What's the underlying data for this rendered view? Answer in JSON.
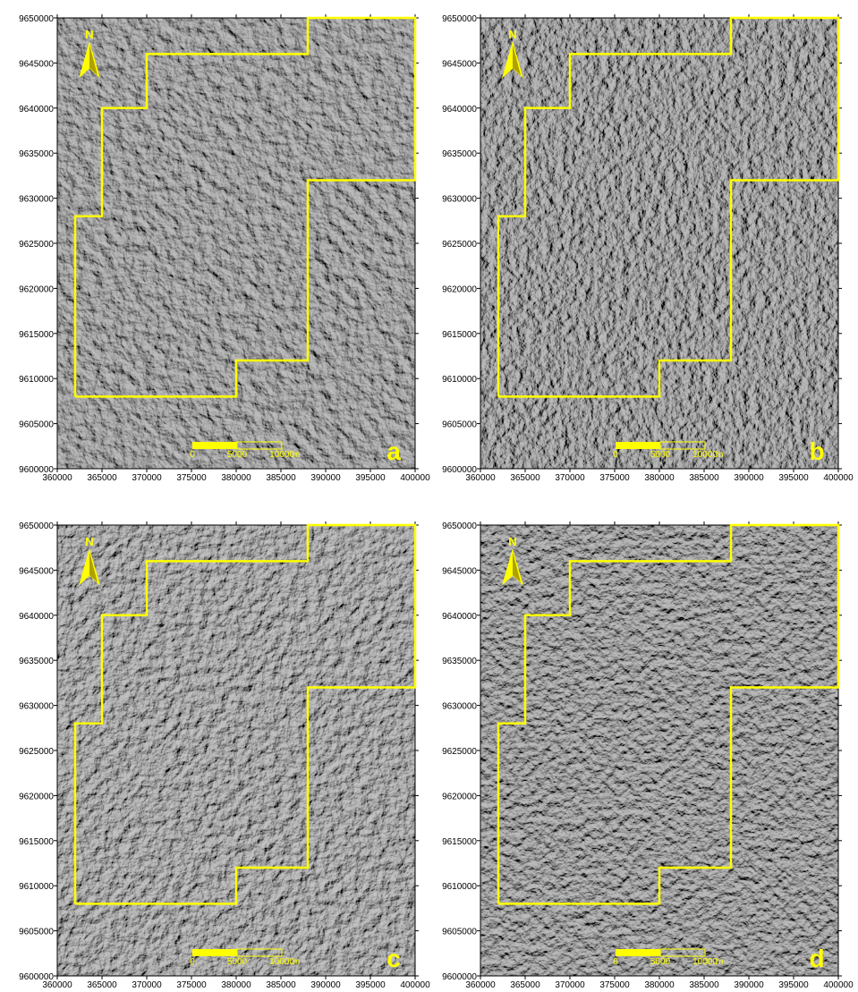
{
  "axes": {
    "xlim": [
      360000,
      400000
    ],
    "ylim": [
      9600000,
      9650000
    ],
    "xticks": [
      360000,
      365000,
      370000,
      375000,
      380000,
      385000,
      390000,
      395000,
      400000
    ],
    "yticks": [
      9600000,
      9605000,
      9610000,
      9615000,
      9620000,
      9625000,
      9630000,
      9635000,
      9640000,
      9645000,
      9650000
    ]
  },
  "boundary": {
    "x": [
      362000,
      380000,
      380000,
      388000,
      388000,
      400000,
      400000,
      388000,
      388000,
      370000,
      370000,
      365000,
      365000,
      362000,
      362000
    ],
    "y": [
      9608000,
      9608000,
      9612000,
      9612000,
      9632000,
      9632000,
      9650000,
      9650000,
      9646000,
      9646000,
      9640000,
      9640000,
      9628000,
      9628000,
      9608000
    ]
  },
  "north": "N",
  "scale_bar": {
    "ticks": [
      0,
      5000,
      10000
    ],
    "unit": "m"
  },
  "panels": [
    {
      "label": "a"
    },
    {
      "label": "b"
    },
    {
      "label": "c"
    },
    {
      "label": "d"
    }
  ]
}
